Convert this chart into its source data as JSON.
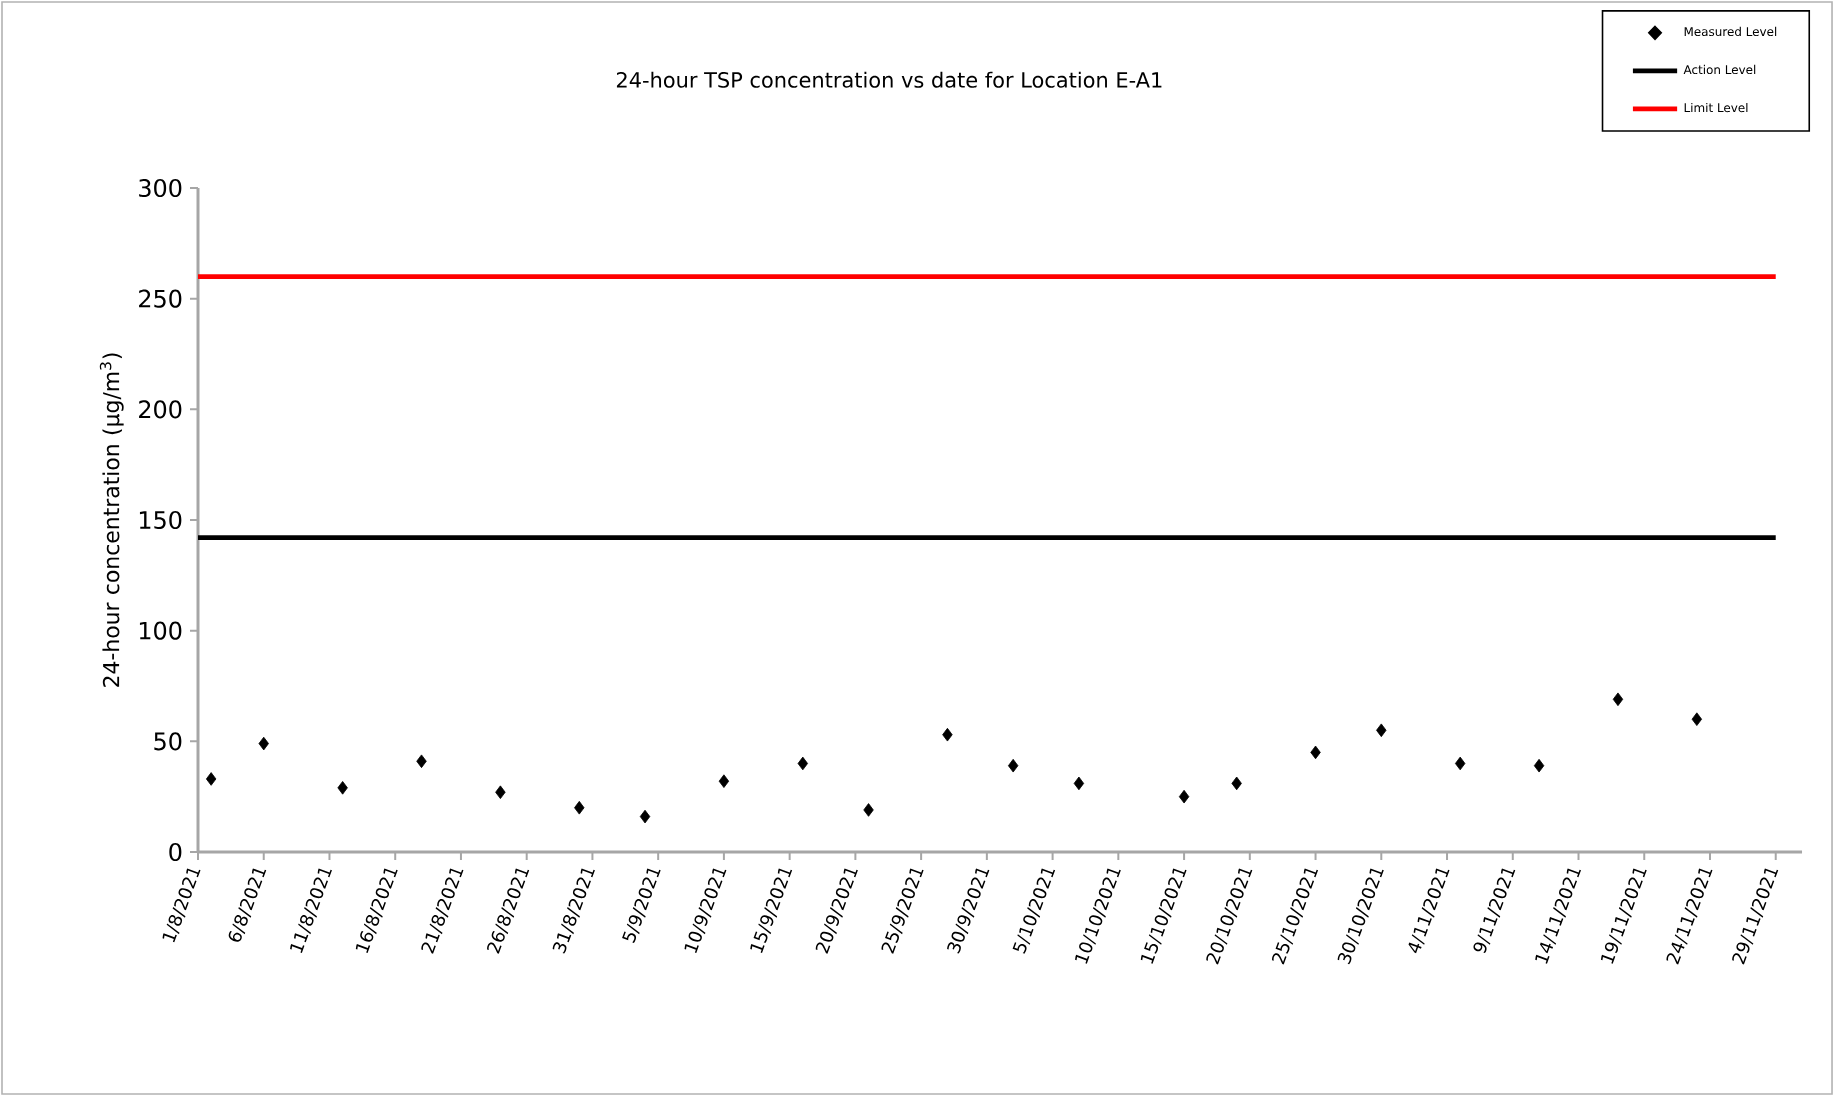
{
  "chart_data": {
    "type": "scatter",
    "title": "24-hour TSP concentration vs date for Location E-A1",
    "ylabel": "24-hour concentration (µg/m$^{3}$)",
    "xlim": [
      "2021-08-01",
      "2021-12-01"
    ],
    "xticks": [
      {
        "value": "2021-08-01",
        "label": "1/8/2021"
      },
      {
        "value": "2021-08-06",
        "label": "6/8/2021"
      },
      {
        "value": "2021-08-11",
        "label": "11/8/2021"
      },
      {
        "value": "2021-08-16",
        "label": "16/8/2021"
      },
      {
        "value": "2021-08-21",
        "label": "21/8/2021"
      },
      {
        "value": "2021-08-26",
        "label": "26/8/2021"
      },
      {
        "value": "2021-08-31",
        "label": "31/8/2021"
      },
      {
        "value": "2021-09-05",
        "label": "5/9/2021"
      },
      {
        "value": "2021-09-10",
        "label": "10/9/2021"
      },
      {
        "value": "2021-09-15",
        "label": "15/9/2021"
      },
      {
        "value": "2021-09-20",
        "label": "20/9/2021"
      },
      {
        "value": "2021-09-25",
        "label": "25/9/2021"
      },
      {
        "value": "2021-09-30",
        "label": "30/9/2021"
      },
      {
        "value": "2021-10-05",
        "label": "5/10/2021"
      },
      {
        "value": "2021-10-10",
        "label": "10/10/2021"
      },
      {
        "value": "2021-10-15",
        "label": "15/10/2021"
      },
      {
        "value": "2021-10-20",
        "label": "20/10/2021"
      },
      {
        "value": "2021-10-25",
        "label": "25/10/2021"
      },
      {
        "value": "2021-10-30",
        "label": "30/10/2021"
      },
      {
        "value": "2021-11-04",
        "label": "4/11/2021"
      },
      {
        "value": "2021-11-09",
        "label": "9/11/2021"
      },
      {
        "value": "2021-11-14",
        "label": "14/11/2021"
      },
      {
        "value": "2021-11-19",
        "label": "19/11/2021"
      },
      {
        "value": "2021-11-24",
        "label": "24/11/2021"
      },
      {
        "value": "2021-11-29",
        "label": "29/11/2021"
      }
    ],
    "ylim": [
      0,
      300
    ],
    "yticks": [
      0,
      50,
      100,
      150,
      200,
      250,
      300
    ],
    "legend": "top right",
    "grid": false,
    "series": [
      {
        "name": "Measured Level",
        "marker": "diamond",
        "color": "#000000",
        "x": [
          "2021-08-02",
          "2021-08-06",
          "2021-08-12",
          "2021-08-18",
          "2021-08-24",
          "2021-08-30",
          "2021-09-04",
          "2021-09-10",
          "2021-09-16",
          "2021-09-21",
          "2021-09-27",
          "2021-10-02",
          "2021-10-07",
          "2021-10-15",
          "2021-10-19",
          "2021-10-25",
          "2021-10-30",
          "2021-11-05",
          "2021-11-11",
          "2021-11-17",
          "2021-11-23"
        ],
        "values": [
          33,
          49,
          29,
          41,
          27,
          20,
          16,
          32,
          40,
          19,
          53,
          39,
          31,
          25,
          31,
          45,
          55,
          40,
          39,
          69,
          60
        ]
      },
      {
        "name": "Action Level",
        "type": "line",
        "marker": "none",
        "color": "#000000",
        "x": [
          "2021-08-01",
          "2021-11-29"
        ],
        "values": [
          142,
          142
        ]
      },
      {
        "name": "Limit Level",
        "type": "line",
        "marker": "none",
        "color": "#ff0000",
        "x": [
          "2021-08-01",
          "2021-11-29"
        ],
        "values": [
          260,
          260
        ]
      }
    ]
  }
}
